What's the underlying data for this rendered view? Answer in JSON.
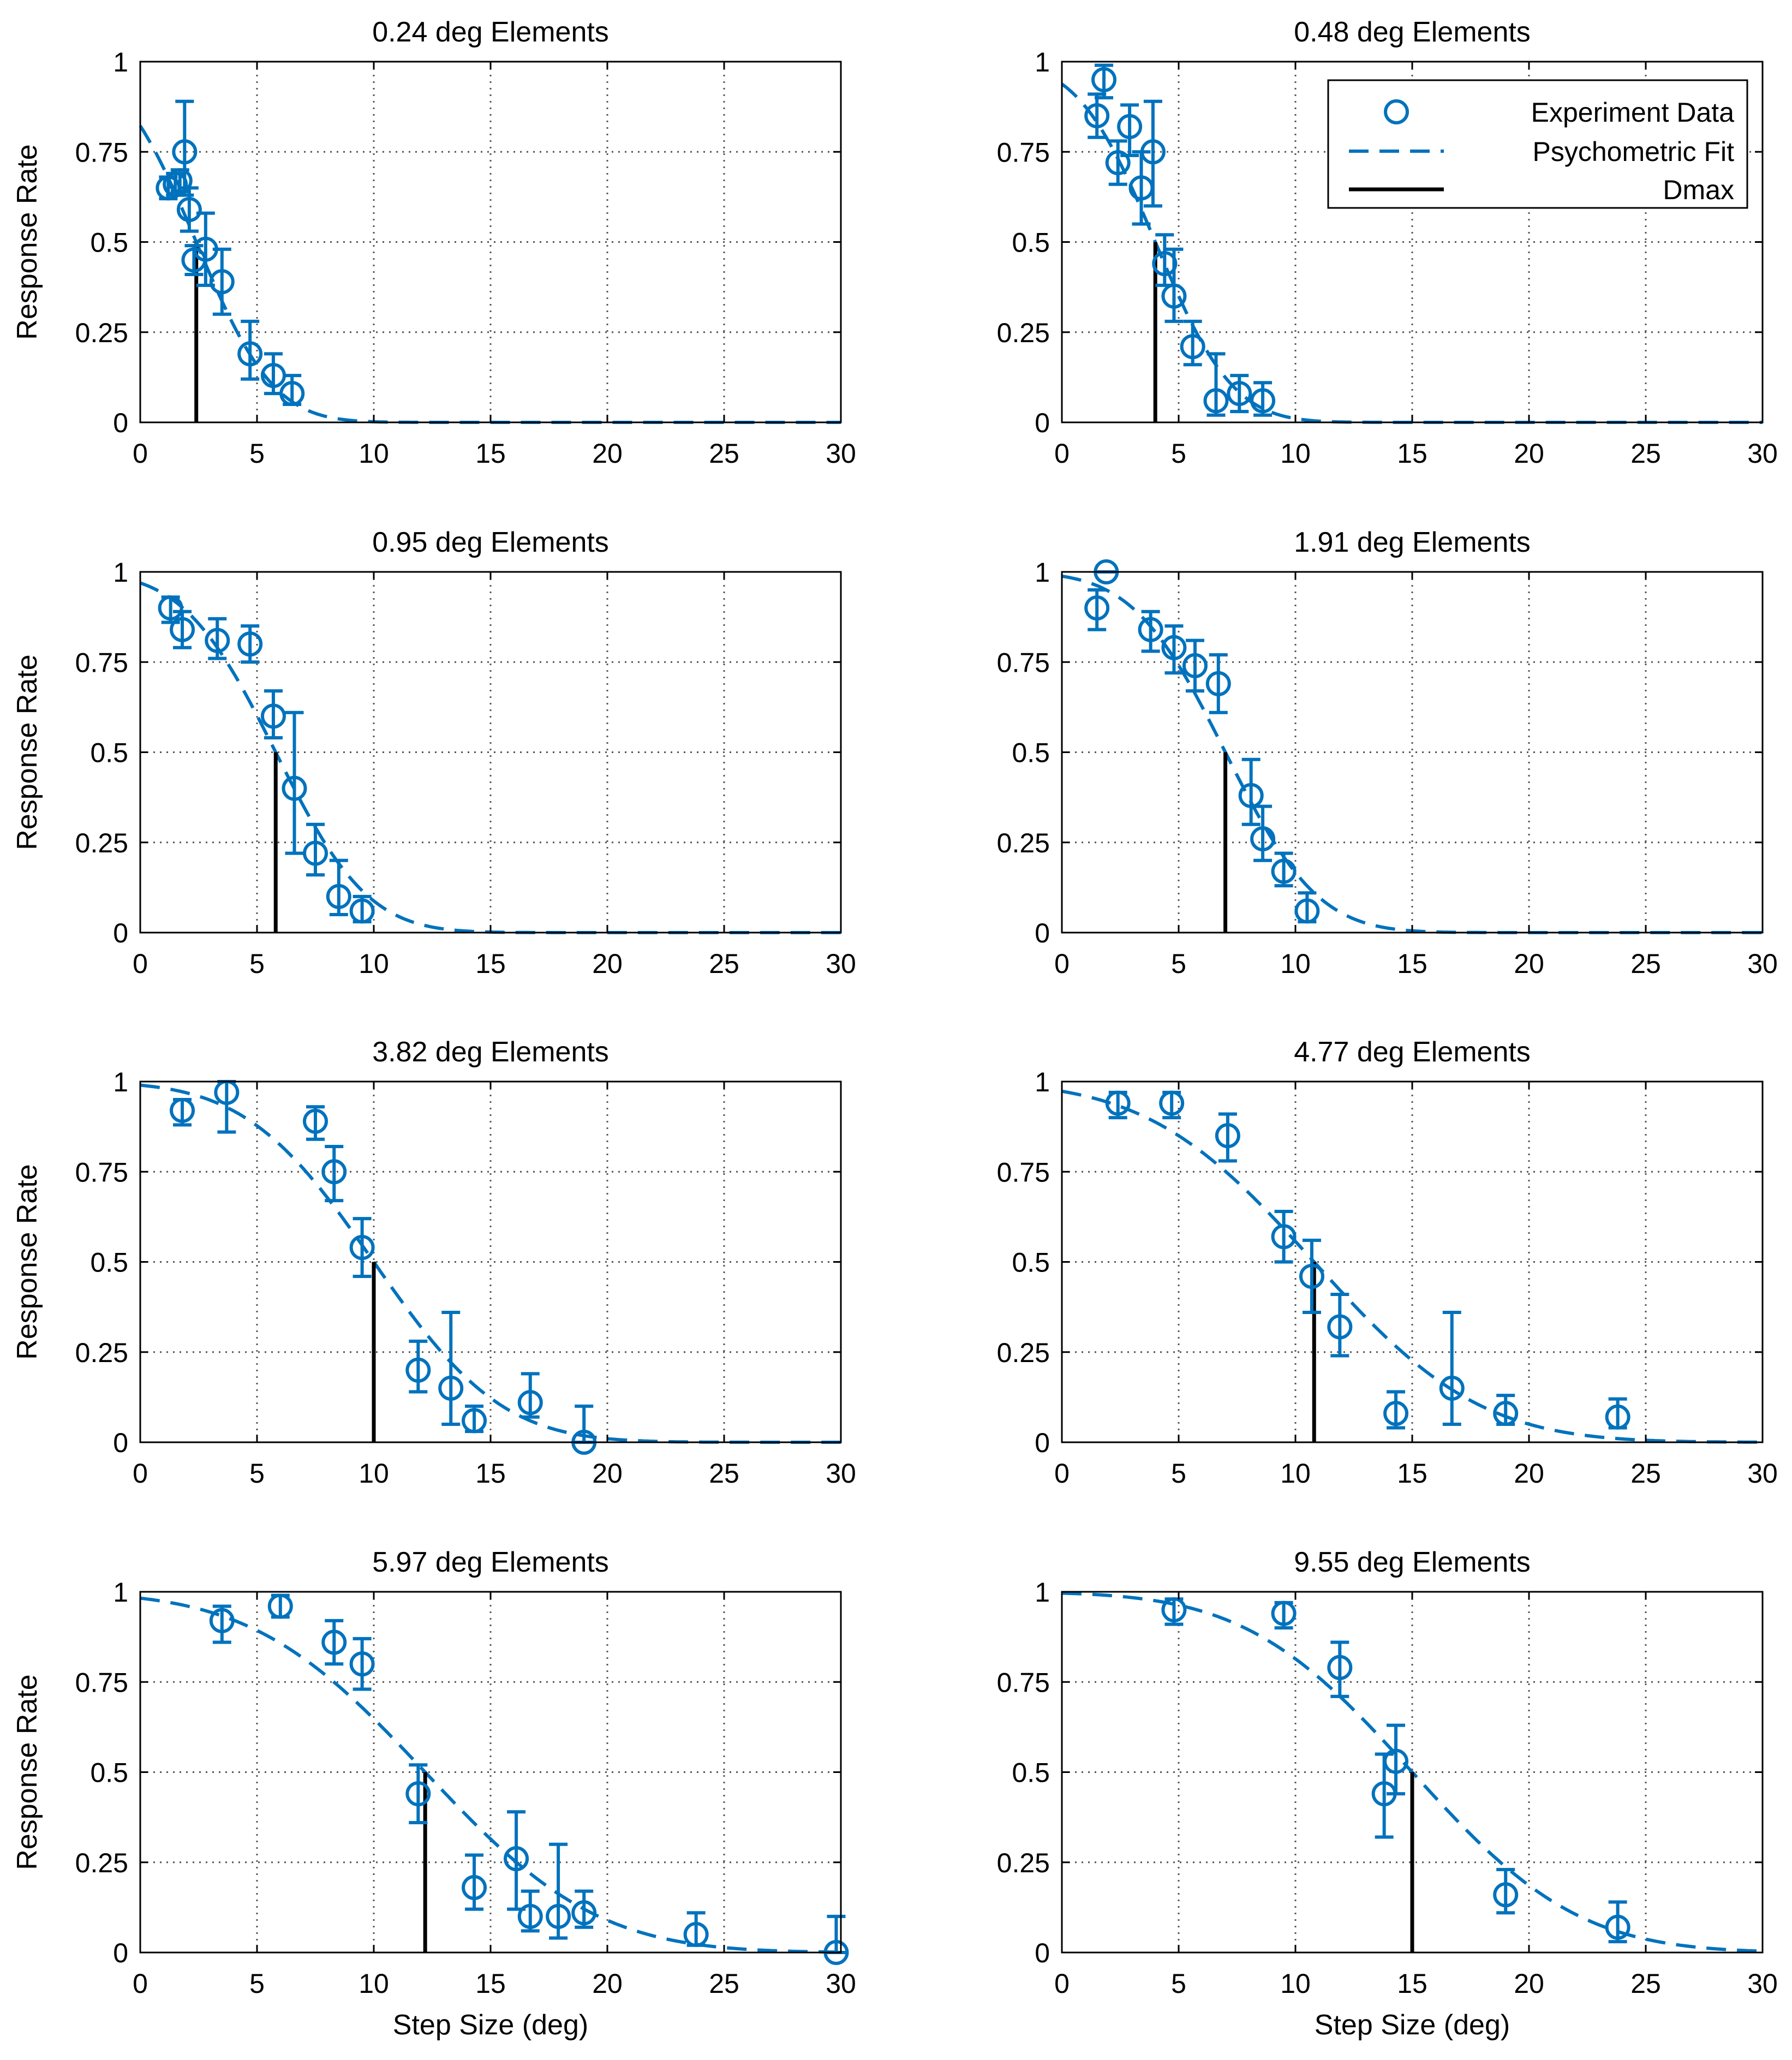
{
  "colors": {
    "series": "#0072BD",
    "dmax": "#000000",
    "grid": "#555555",
    "axis": "#000000"
  },
  "chart_data": [
    {
      "type": "scatter",
      "title": "0.24 deg Elements",
      "xlabel": "",
      "ylabel": "Response Rate",
      "xlim": [
        0,
        30
      ],
      "ylim": [
        0,
        1
      ],
      "xticks": [
        "0",
        "5",
        "10",
        "15",
        "20",
        "25",
        "30"
      ],
      "yticks": [
        "0",
        "0.25",
        "0.5",
        "0.75",
        "1"
      ],
      "grid": true,
      "dmax": 2.4,
      "fit": {
        "mu": 2.4,
        "sigma": 2.6
      },
      "series": [
        {
          "name": "Experiment Data",
          "points": [
            {
              "x": 1.2,
              "y": 0.65,
              "lo": 0.62,
              "hi": 0.68
            },
            {
              "x": 1.5,
              "y": 0.66,
              "lo": 0.63,
              "hi": 0.69
            },
            {
              "x": 1.7,
              "y": 0.67,
              "lo": 0.64,
              "hi": 0.7
            },
            {
              "x": 1.9,
              "y": 0.75,
              "lo": 0.63,
              "hi": 0.89
            },
            {
              "x": 2.1,
              "y": 0.59,
              "lo": 0.53,
              "hi": 0.65
            },
            {
              "x": 2.3,
              "y": 0.45,
              "lo": 0.41,
              "hi": 0.49
            },
            {
              "x": 2.8,
              "y": 0.48,
              "lo": 0.38,
              "hi": 0.58
            },
            {
              "x": 3.5,
              "y": 0.39,
              "lo": 0.3,
              "hi": 0.48
            },
            {
              "x": 4.7,
              "y": 0.19,
              "lo": 0.12,
              "hi": 0.28
            },
            {
              "x": 5.7,
              "y": 0.13,
              "lo": 0.08,
              "hi": 0.19
            },
            {
              "x": 6.5,
              "y": 0.08,
              "lo": 0.05,
              "hi": 0.13
            }
          ]
        }
      ]
    },
    {
      "type": "scatter",
      "title": "0.48 deg Elements",
      "xlabel": "",
      "ylabel": "",
      "xlim": [
        0,
        30
      ],
      "ylim": [
        0,
        1
      ],
      "xticks": [
        "0",
        "5",
        "10",
        "15",
        "20",
        "25",
        "30"
      ],
      "yticks": [
        "0",
        "0.25",
        "0.5",
        "0.75",
        "1"
      ],
      "grid": true,
      "dmax": 4.0,
      "fit": {
        "mu": 4.0,
        "sigma": 2.6
      },
      "legend": {
        "position": "top-right",
        "entries": [
          "Experiment Data",
          "Psychometric Fit",
          "Dmax"
        ]
      },
      "series": [
        {
          "name": "Experiment Data",
          "points": [
            {
              "x": 1.5,
              "y": 0.85,
              "lo": 0.79,
              "hi": 0.91
            },
            {
              "x": 1.8,
              "y": 0.95,
              "lo": 0.9,
              "hi": 0.99
            },
            {
              "x": 2.4,
              "y": 0.72,
              "lo": 0.66,
              "hi": 0.78
            },
            {
              "x": 2.9,
              "y": 0.82,
              "lo": 0.74,
              "hi": 0.88
            },
            {
              "x": 3.4,
              "y": 0.65,
              "lo": 0.55,
              "hi": 0.75
            },
            {
              "x": 3.9,
              "y": 0.75,
              "lo": 0.6,
              "hi": 0.89
            },
            {
              "x": 4.4,
              "y": 0.44,
              "lo": 0.38,
              "hi": 0.52
            },
            {
              "x": 4.8,
              "y": 0.35,
              "lo": 0.28,
              "hi": 0.48
            },
            {
              "x": 5.6,
              "y": 0.21,
              "lo": 0.16,
              "hi": 0.28
            },
            {
              "x": 6.6,
              "y": 0.06,
              "lo": 0.02,
              "hi": 0.19
            },
            {
              "x": 7.6,
              "y": 0.08,
              "lo": 0.03,
              "hi": 0.13
            },
            {
              "x": 8.6,
              "y": 0.06,
              "lo": 0.02,
              "hi": 0.11
            }
          ]
        }
      ]
    },
    {
      "type": "scatter",
      "title": "0.95 deg Elements",
      "xlabel": "",
      "ylabel": "Response Rate",
      "xlim": [
        0,
        30
      ],
      "ylim": [
        0,
        1
      ],
      "xticks": [
        "0",
        "5",
        "10",
        "15",
        "20",
        "25",
        "30"
      ],
      "yticks": [
        "0",
        "0.25",
        "0.5",
        "0.75",
        "1"
      ],
      "grid": true,
      "dmax": 5.8,
      "fit": {
        "mu": 5.8,
        "sigma": 3.1
      },
      "series": [
        {
          "name": "Experiment Data",
          "points": [
            {
              "x": 1.3,
              "y": 0.9,
              "lo": 0.86,
              "hi": 0.93
            },
            {
              "x": 1.8,
              "y": 0.84,
              "lo": 0.79,
              "hi": 0.89
            },
            {
              "x": 3.3,
              "y": 0.81,
              "lo": 0.76,
              "hi": 0.87
            },
            {
              "x": 4.7,
              "y": 0.8,
              "lo": 0.75,
              "hi": 0.85
            },
            {
              "x": 5.7,
              "y": 0.6,
              "lo": 0.54,
              "hi": 0.67
            },
            {
              "x": 6.6,
              "y": 0.4,
              "lo": 0.22,
              "hi": 0.61
            },
            {
              "x": 7.5,
              "y": 0.22,
              "lo": 0.16,
              "hi": 0.3
            },
            {
              "x": 8.5,
              "y": 0.1,
              "lo": 0.05,
              "hi": 0.2
            },
            {
              "x": 9.5,
              "y": 0.06,
              "lo": 0.03,
              "hi": 0.1
            }
          ]
        }
      ]
    },
    {
      "type": "scatter",
      "title": "1.91 deg Elements",
      "xlabel": "",
      "ylabel": "",
      "xlim": [
        0,
        30
      ],
      "ylim": [
        0,
        1
      ],
      "xticks": [
        "0",
        "5",
        "10",
        "15",
        "20",
        "25",
        "30"
      ],
      "yticks": [
        "0",
        "0.25",
        "0.5",
        "0.75",
        "1"
      ],
      "grid": true,
      "dmax": 7.0,
      "fit": {
        "mu": 7.0,
        "sigma": 3.1
      },
      "series": [
        {
          "name": "Experiment Data",
          "points": [
            {
              "x": 1.5,
              "y": 0.9,
              "lo": 0.84,
              "hi": 0.95
            },
            {
              "x": 1.9,
              "y": 1.0,
              "lo": 1.0,
              "hi": 1.0
            },
            {
              "x": 3.8,
              "y": 0.84,
              "lo": 0.78,
              "hi": 0.89
            },
            {
              "x": 4.8,
              "y": 0.79,
              "lo": 0.72,
              "hi": 0.85
            },
            {
              "x": 5.7,
              "y": 0.74,
              "lo": 0.67,
              "hi": 0.81
            },
            {
              "x": 6.7,
              "y": 0.69,
              "lo": 0.61,
              "hi": 0.77
            },
            {
              "x": 8.1,
              "y": 0.38,
              "lo": 0.3,
              "hi": 0.48
            },
            {
              "x": 8.6,
              "y": 0.26,
              "lo": 0.2,
              "hi": 0.35
            },
            {
              "x": 9.5,
              "y": 0.17,
              "lo": 0.13,
              "hi": 0.22
            },
            {
              "x": 10.5,
              "y": 0.06,
              "lo": 0.03,
              "hi": 0.11
            }
          ]
        }
      ]
    },
    {
      "type": "scatter",
      "title": "3.82 deg Elements",
      "xlabel": "",
      "ylabel": "Response Rate",
      "xlim": [
        0,
        30
      ],
      "ylim": [
        0,
        1
      ],
      "xticks": [
        "0",
        "5",
        "10",
        "15",
        "20",
        "25",
        "30"
      ],
      "yticks": [
        "0",
        "0.25",
        "0.5",
        "0.75",
        "1"
      ],
      "grid": true,
      "dmax": 10.0,
      "fit": {
        "mu": 10.0,
        "sigma": 4.3
      },
      "series": [
        {
          "name": "Experiment Data",
          "points": [
            {
              "x": 1.8,
              "y": 0.92,
              "lo": 0.88,
              "hi": 0.95
            },
            {
              "x": 3.7,
              "y": 0.97,
              "lo": 0.86,
              "hi": 1.0
            },
            {
              "x": 7.5,
              "y": 0.89,
              "lo": 0.84,
              "hi": 0.93
            },
            {
              "x": 8.3,
              "y": 0.75,
              "lo": 0.67,
              "hi": 0.82
            },
            {
              "x": 9.5,
              "y": 0.54,
              "lo": 0.46,
              "hi": 0.62
            },
            {
              "x": 11.9,
              "y": 0.2,
              "lo": 0.14,
              "hi": 0.28
            },
            {
              "x": 13.3,
              "y": 0.15,
              "lo": 0.05,
              "hi": 0.36
            },
            {
              "x": 14.3,
              "y": 0.06,
              "lo": 0.03,
              "hi": 0.1
            },
            {
              "x": 16.7,
              "y": 0.11,
              "lo": 0.07,
              "hi": 0.19
            },
            {
              "x": 19.0,
              "y": 0.0,
              "lo": 0.0,
              "hi": 0.1
            }
          ]
        }
      ]
    },
    {
      "type": "scatter",
      "title": "4.77 deg Elements",
      "xlabel": "",
      "ylabel": "",
      "xlim": [
        0,
        30
      ],
      "ylim": [
        0,
        1
      ],
      "xticks": [
        "0",
        "5",
        "10",
        "15",
        "20",
        "25",
        "30"
      ],
      "yticks": [
        "0",
        "0.25",
        "0.5",
        "0.75",
        "1"
      ],
      "grid": true,
      "dmax": 10.8,
      "fit": {
        "mu": 10.8,
        "sigma": 5.6
      },
      "series": [
        {
          "name": "Experiment Data",
          "points": [
            {
              "x": 2.4,
              "y": 0.94,
              "lo": 0.9,
              "hi": 0.97
            },
            {
              "x": 4.7,
              "y": 0.94,
              "lo": 0.9,
              "hi": 0.97
            },
            {
              "x": 7.1,
              "y": 0.85,
              "lo": 0.78,
              "hi": 0.91
            },
            {
              "x": 9.5,
              "y": 0.57,
              "lo": 0.5,
              "hi": 0.64
            },
            {
              "x": 10.7,
              "y": 0.46,
              "lo": 0.36,
              "hi": 0.56
            },
            {
              "x": 11.9,
              "y": 0.32,
              "lo": 0.24,
              "hi": 0.41
            },
            {
              "x": 14.3,
              "y": 0.08,
              "lo": 0.04,
              "hi": 0.14
            },
            {
              "x": 16.7,
              "y": 0.15,
              "lo": 0.05,
              "hi": 0.36
            },
            {
              "x": 19.0,
              "y": 0.08,
              "lo": 0.05,
              "hi": 0.13
            },
            {
              "x": 23.8,
              "y": 0.07,
              "lo": 0.04,
              "hi": 0.12
            }
          ]
        }
      ]
    },
    {
      "type": "scatter",
      "title": "5.97 deg Elements",
      "xlabel": "Step Size (deg)",
      "ylabel": "Response Rate",
      "xlim": [
        0,
        30
      ],
      "ylim": [
        0,
        1
      ],
      "xticks": [
        "0",
        "5",
        "10",
        "15",
        "20",
        "25",
        "30"
      ],
      "yticks": [
        "0",
        "0.25",
        "0.5",
        "0.75",
        "1"
      ],
      "grid": true,
      "dmax": 12.2,
      "fit": {
        "mu": 12.2,
        "sigma": 5.8
      },
      "series": [
        {
          "name": "Experiment Data",
          "points": [
            {
              "x": 3.5,
              "y": 0.92,
              "lo": 0.86,
              "hi": 0.96
            },
            {
              "x": 6.0,
              "y": 0.96,
              "lo": 0.93,
              "hi": 0.99
            },
            {
              "x": 8.3,
              "y": 0.86,
              "lo": 0.8,
              "hi": 0.92
            },
            {
              "x": 9.5,
              "y": 0.8,
              "lo": 0.73,
              "hi": 0.87
            },
            {
              "x": 11.9,
              "y": 0.44,
              "lo": 0.36,
              "hi": 0.52
            },
            {
              "x": 14.3,
              "y": 0.18,
              "lo": 0.12,
              "hi": 0.27
            },
            {
              "x": 16.1,
              "y": 0.26,
              "lo": 0.12,
              "hi": 0.39
            },
            {
              "x": 16.7,
              "y": 0.1,
              "lo": 0.06,
              "hi": 0.17
            },
            {
              "x": 17.9,
              "y": 0.1,
              "lo": 0.04,
              "hi": 0.3
            },
            {
              "x": 19.0,
              "y": 0.11,
              "lo": 0.07,
              "hi": 0.17
            },
            {
              "x": 23.8,
              "y": 0.05,
              "lo": 0.02,
              "hi": 0.11
            },
            {
              "x": 29.8,
              "y": 0.0,
              "lo": 0.0,
              "hi": 0.1
            }
          ]
        }
      ]
    },
    {
      "type": "scatter",
      "title": "9.55 deg Elements",
      "xlabel": "Step Size (deg)",
      "ylabel": "",
      "xlim": [
        0,
        30
      ],
      "ylim": [
        0,
        1
      ],
      "xticks": [
        "0",
        "5",
        "10",
        "15",
        "20",
        "25",
        "30"
      ],
      "yticks": [
        "0",
        "0.25",
        "0.5",
        "0.75",
        "1"
      ],
      "grid": true,
      "dmax": 15.0,
      "fit": {
        "mu": 15.0,
        "sigma": 5.6
      },
      "series": [
        {
          "name": "Experiment Data",
          "points": [
            {
              "x": 4.8,
              "y": 0.95,
              "lo": 0.91,
              "hi": 0.98
            },
            {
              "x": 9.5,
              "y": 0.94,
              "lo": 0.9,
              "hi": 0.97
            },
            {
              "x": 11.9,
              "y": 0.79,
              "lo": 0.71,
              "hi": 0.86
            },
            {
              "x": 13.8,
              "y": 0.44,
              "lo": 0.32,
              "hi": 0.55
            },
            {
              "x": 14.3,
              "y": 0.53,
              "lo": 0.44,
              "hi": 0.63
            },
            {
              "x": 19.0,
              "y": 0.16,
              "lo": 0.11,
              "hi": 0.23
            },
            {
              "x": 23.8,
              "y": 0.07,
              "lo": 0.03,
              "hi": 0.14
            }
          ]
        }
      ]
    }
  ]
}
